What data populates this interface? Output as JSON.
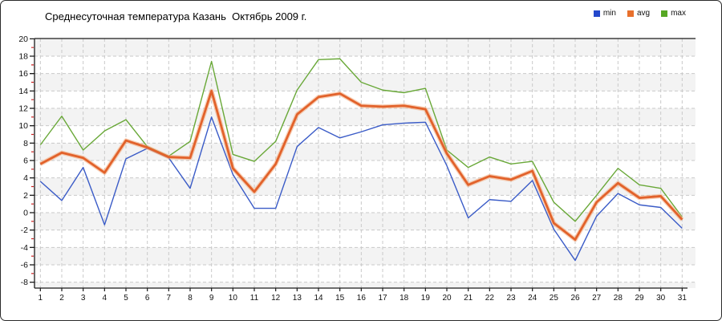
{
  "header": {
    "title": "Среднесуточная температура Казань  Октябрь 2009 г."
  },
  "legend": {
    "items": [
      {
        "label": "min",
        "color": "#2448cc"
      },
      {
        "label": "avg",
        "color": "#e8702c"
      },
      {
        "label": "max",
        "color": "#57a824"
      }
    ]
  },
  "colors": {
    "min_line": "#3a5bc7",
    "avg_line": "#e2622b",
    "avg_halo": "#f2ab7d",
    "max_line": "#69a838",
    "grid": "#c9c9c9",
    "band": "#f3f3f3",
    "axis": "#1a1a1a",
    "minor_tick": "#cc2222",
    "tick_text": "#111111"
  },
  "chart_data": {
    "type": "line",
    "title": "Среднесуточная температура Казань  Октябрь 2009 г.",
    "xlabel": "",
    "ylabel": "",
    "legend_position": "top-right",
    "grid": true,
    "categories": [
      1,
      2,
      3,
      4,
      5,
      6,
      7,
      8,
      9,
      10,
      11,
      12,
      13,
      14,
      15,
      16,
      17,
      18,
      19,
      20,
      21,
      22,
      23,
      24,
      25,
      26,
      27,
      28,
      29,
      30,
      31
    ],
    "yaxis": {
      "min": -8,
      "max": 20,
      "tick_step": 2,
      "ticks": [
        20,
        18,
        16,
        14,
        12,
        10,
        8,
        6,
        4,
        2,
        0,
        -2,
        -4,
        -6,
        -8
      ]
    },
    "series": [
      {
        "name": "min",
        "values": [
          3.6,
          1.4,
          5.2,
          -1.4,
          6.2,
          7.4,
          6.3,
          2.8,
          11.0,
          4.4,
          0.5,
          0.5,
          7.6,
          9.8,
          8.6,
          9.3,
          10.1,
          10.3,
          10.4,
          5.4,
          -0.6,
          1.5,
          1.3,
          3.7,
          -1.9,
          -5.5,
          -0.4,
          2.2,
          0.9,
          0.6,
          -1.8
        ]
      },
      {
        "name": "avg",
        "values": [
          5.6,
          6.9,
          6.3,
          4.6,
          8.3,
          7.5,
          6.4,
          6.3,
          14.0,
          5.1,
          2.4,
          5.6,
          11.3,
          13.3,
          13.7,
          12.3,
          12.2,
          12.3,
          11.9,
          6.8,
          3.2,
          4.2,
          3.8,
          4.8,
          -1.2,
          -3.1,
          1.2,
          3.4,
          1.7,
          1.9,
          -0.8
        ]
      },
      {
        "name": "max",
        "values": [
          7.8,
          11.1,
          7.2,
          9.4,
          10.7,
          7.6,
          6.5,
          8.2,
          17.4,
          6.7,
          5.9,
          8.2,
          14.1,
          17.6,
          17.7,
          15.0,
          14.1,
          13.8,
          14.3,
          7.2,
          5.2,
          6.4,
          5.6,
          5.9,
          1.2,
          -1.0,
          2.0,
          5.1,
          3.2,
          2.8,
          -0.5
        ]
      }
    ]
  }
}
